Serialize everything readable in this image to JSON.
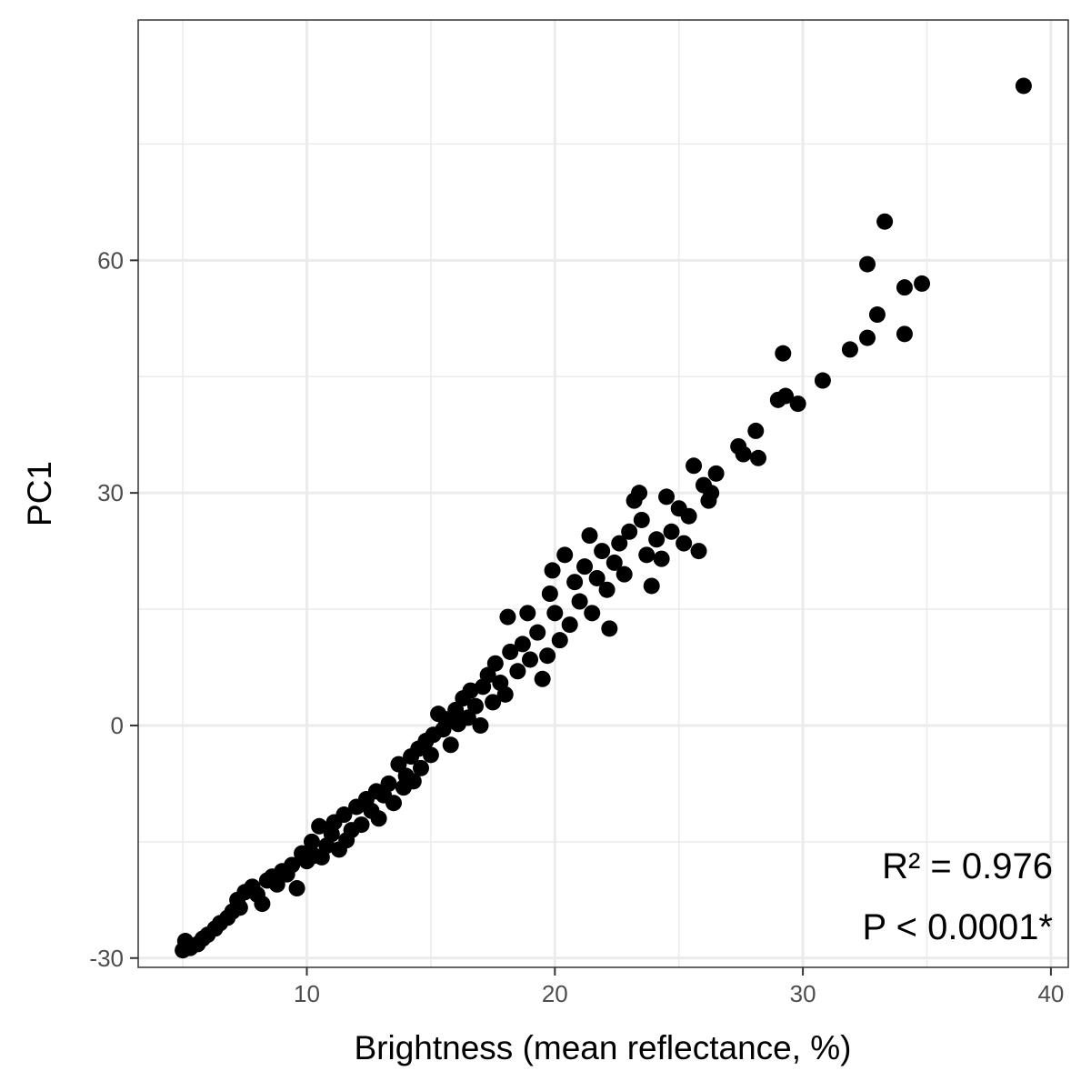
{
  "chart_data": {
    "type": "scatter",
    "title": "",
    "xlabel": "Brightness (mean reflectance, %)",
    "ylabel": "PC1",
    "xlim": [
      3.2,
      40.7
    ],
    "ylim": [
      -31.2,
      91.0
    ],
    "xticks": [
      10,
      20,
      30,
      40
    ],
    "xtick_labels": [
      "10",
      "20",
      "30",
      "40"
    ],
    "yticks": [
      -30,
      0,
      30,
      60
    ],
    "ytick_labels": [
      "-30",
      "0",
      "30",
      "60"
    ],
    "grid": true,
    "legend": "none",
    "colors": {
      "points": "#000000",
      "grid": "#ebebeb",
      "panel_border": "#333333"
    },
    "annotations": [
      {
        "text": "R² = 0.976",
        "x": 40.0,
        "y": -21.5
      },
      {
        "text": "P < 0.0001*",
        "x": 40.0,
        "y": -29.0
      }
    ],
    "points": [
      [
        5.0,
        -29.0
      ],
      [
        5.2,
        -28.5
      ],
      [
        5.3,
        -28.7
      ],
      [
        5.1,
        -27.8
      ],
      [
        5.6,
        -28.2
      ],
      [
        5.8,
        -27.5
      ],
      [
        6.0,
        -27.0
      ],
      [
        6.3,
        -26.2
      ],
      [
        6.5,
        -25.5
      ],
      [
        6.8,
        -24.8
      ],
      [
        7.0,
        -24.0
      ],
      [
        7.3,
        -23.5
      ],
      [
        7.2,
        -22.5
      ],
      [
        7.5,
        -21.5
      ],
      [
        7.8,
        -20.8
      ],
      [
        8.0,
        -21.8
      ],
      [
        8.2,
        -23.0
      ],
      [
        8.4,
        -20.0
      ],
      [
        8.6,
        -19.5
      ],
      [
        8.8,
        -20.5
      ],
      [
        9.0,
        -18.8
      ],
      [
        9.2,
        -19.2
      ],
      [
        9.4,
        -18.0
      ],
      [
        9.6,
        -21.0
      ],
      [
        9.8,
        -16.5
      ],
      [
        10.0,
        -17.5
      ],
      [
        10.2,
        -15.0
      ],
      [
        10.3,
        -16.8
      ],
      [
        10.5,
        -13.0
      ],
      [
        10.6,
        -17.0
      ],
      [
        10.8,
        -15.5
      ],
      [
        11.0,
        -14.0
      ],
      [
        11.1,
        -12.5
      ],
      [
        11.3,
        -16.0
      ],
      [
        11.5,
        -11.5
      ],
      [
        11.6,
        -14.8
      ],
      [
        11.8,
        -13.5
      ],
      [
        12.0,
        -10.5
      ],
      [
        12.2,
        -12.8
      ],
      [
        12.4,
        -9.5
      ],
      [
        12.6,
        -11.0
      ],
      [
        12.8,
        -8.5
      ],
      [
        12.9,
        -12.0
      ],
      [
        13.1,
        -9.0
      ],
      [
        13.3,
        -7.5
      ],
      [
        13.5,
        -10.0
      ],
      [
        13.7,
        -5.0
      ],
      [
        13.9,
        -8.0
      ],
      [
        14.0,
        -6.5
      ],
      [
        14.2,
        -4.0
      ],
      [
        14.3,
        -7.2
      ],
      [
        14.5,
        -3.0
      ],
      [
        14.6,
        -5.5
      ],
      [
        14.8,
        -2.0
      ],
      [
        15.0,
        -3.8
      ],
      [
        15.1,
        -1.2
      ],
      [
        15.3,
        1.5
      ],
      [
        15.5,
        -0.5
      ],
      [
        15.6,
        0.8
      ],
      [
        15.8,
        -2.5
      ],
      [
        16.0,
        2.0
      ],
      [
        16.1,
        0.2
      ],
      [
        16.3,
        3.5
      ],
      [
        16.5,
        1.0
      ],
      [
        16.6,
        4.5
      ],
      [
        16.8,
        2.5
      ],
      [
        17.0,
        0.0
      ],
      [
        17.1,
        5.0
      ],
      [
        17.3,
        6.5
      ],
      [
        17.5,
        3.0
      ],
      [
        17.6,
        8.0
      ],
      [
        17.8,
        5.5
      ],
      [
        18.0,
        4.0
      ],
      [
        18.1,
        14.0
      ],
      [
        18.2,
        9.5
      ],
      [
        18.5,
        7.0
      ],
      [
        18.7,
        10.5
      ],
      [
        18.9,
        14.5
      ],
      [
        19.0,
        8.5
      ],
      [
        19.3,
        12.0
      ],
      [
        19.5,
        6.0
      ],
      [
        19.7,
        9.0
      ],
      [
        19.8,
        17.0
      ],
      [
        19.9,
        20.0
      ],
      [
        20.0,
        14.5
      ],
      [
        20.2,
        11.0
      ],
      [
        20.4,
        22.0
      ],
      [
        20.6,
        13.0
      ],
      [
        20.8,
        18.5
      ],
      [
        21.0,
        16.0
      ],
      [
        21.2,
        20.5
      ],
      [
        21.4,
        24.5
      ],
      [
        21.5,
        14.5
      ],
      [
        21.7,
        19.0
      ],
      [
        21.9,
        22.5
      ],
      [
        22.1,
        17.5
      ],
      [
        22.2,
        12.5
      ],
      [
        22.4,
        21.0
      ],
      [
        22.6,
        23.5
      ],
      [
        22.8,
        19.5
      ],
      [
        23.0,
        25.0
      ],
      [
        23.2,
        29.0
      ],
      [
        23.4,
        30.0
      ],
      [
        23.5,
        26.5
      ],
      [
        23.7,
        22.0
      ],
      [
        23.9,
        18.0
      ],
      [
        24.1,
        24.0
      ],
      [
        24.3,
        21.5
      ],
      [
        24.5,
        29.5
      ],
      [
        24.7,
        25.0
      ],
      [
        25.0,
        28.0
      ],
      [
        25.2,
        23.5
      ],
      [
        25.4,
        27.0
      ],
      [
        25.6,
        33.5
      ],
      [
        25.8,
        22.5
      ],
      [
        26.0,
        31.0
      ],
      [
        26.3,
        30.0
      ],
      [
        26.5,
        32.5
      ],
      [
        26.2,
        29.0
      ],
      [
        27.4,
        36.0
      ],
      [
        27.6,
        35.0
      ],
      [
        28.1,
        38.0
      ],
      [
        28.2,
        34.5
      ],
      [
        29.0,
        42.0
      ],
      [
        29.2,
        48.0
      ],
      [
        29.3,
        42.5
      ],
      [
        29.8,
        41.5
      ],
      [
        30.8,
        44.5
      ],
      [
        31.9,
        48.5
      ],
      [
        32.6,
        59.5
      ],
      [
        32.6,
        50.0
      ],
      [
        33.0,
        53.0
      ],
      [
        33.3,
        65.0
      ],
      [
        34.1,
        56.5
      ],
      [
        34.1,
        50.5
      ],
      [
        34.8,
        57.0
      ],
      [
        38.9,
        82.5
      ]
    ]
  }
}
